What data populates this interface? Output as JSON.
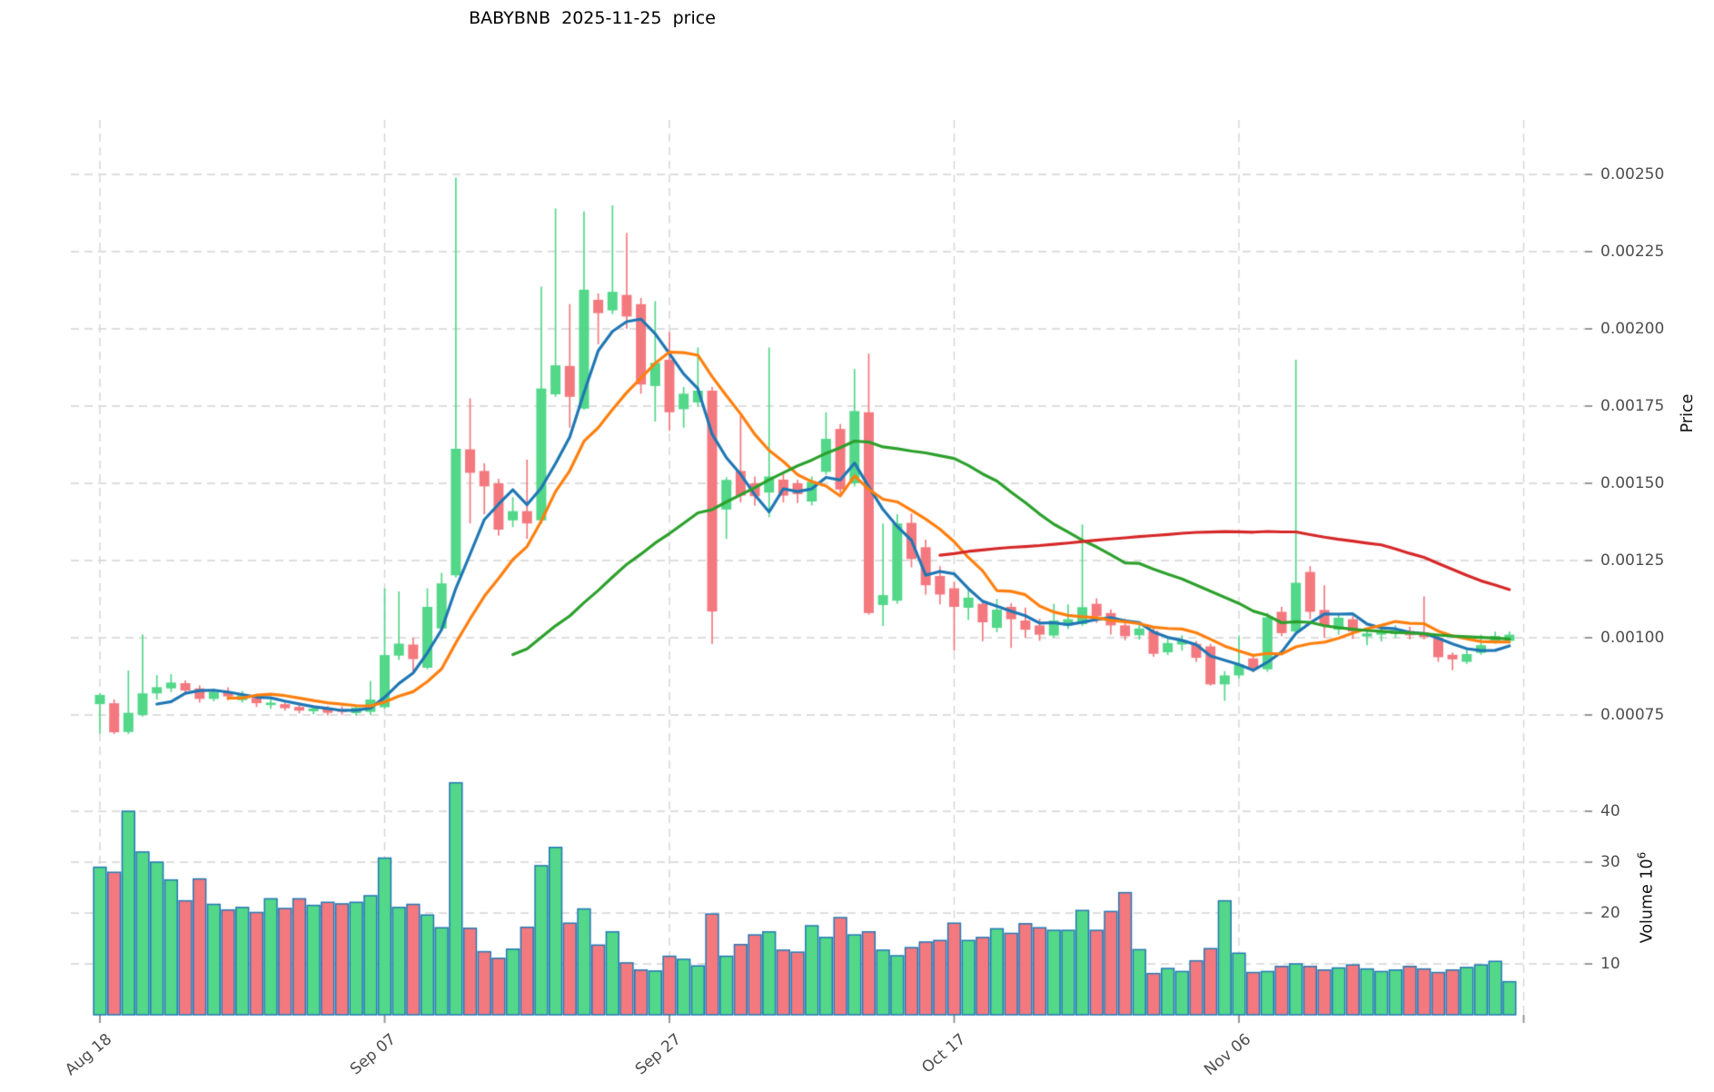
{
  "title": "BABYBNB  2025-11-25  price",
  "axes": {
    "price_label": "Price",
    "volume_label": "Volume 10",
    "volume_label_exp": "6",
    "price_ticks": [
      "0.00250",
      "0.00225",
      "0.00200",
      "0.00175",
      "0.00150",
      "0.00125",
      "0.00100",
      "0.00075"
    ],
    "price_tick_values": [
      0.0025,
      0.00225,
      0.002,
      0.00175,
      0.0015,
      0.00125,
      0.001,
      0.00075
    ],
    "volume_ticks": [
      "40",
      "30",
      "20",
      "10"
    ],
    "volume_tick_values": [
      40,
      30,
      20,
      10
    ],
    "x_ticks": [
      "Aug 18",
      "Sep 07",
      "Sep 27",
      "Oct 17",
      "Nov 06"
    ],
    "x_tick_indices": [
      0,
      20,
      40,
      60,
      80
    ],
    "unlabeled_x_tick_index": 100
  },
  "colors": {
    "up": "#53d789",
    "down": "#f3797f",
    "volume_edge": "#2278b5",
    "ma5": "#1f77b4",
    "ma10": "#ff7f0e",
    "ma30": "#2ca02c",
    "ma60": "#d62728",
    "grid": "#d4d4d4",
    "tick_mark": "#8c8c8c",
    "tick_text": "#4d4d4d",
    "title_text": "#000000"
  },
  "chart_data": {
    "type": "candlestick+volume",
    "symbol": "BABYBNB",
    "as_of_date": "2025-11-25",
    "grid": true,
    "legend_position": "none",
    "ylabel": "Price",
    "ylabel_volume": "Volume 10^6",
    "ylim_price": [
      0.00058,
      0.00268
    ],
    "ylim_volume": [
      0,
      48
    ],
    "volume_unit": "millions",
    "mav_windows": [
      5,
      10,
      30,
      60
    ],
    "candles": [
      [
        "Aug 18",
        0.000785,
        0.00082,
        0.00069,
        0.000815,
        29.0
      ],
      [
        "Aug 19",
        0.000788,
        0.0008,
        0.000688,
        0.000694,
        28.0
      ],
      [
        "Aug 20",
        0.000695,
        0.000894,
        0.000688,
        0.000757,
        40.0
      ],
      [
        "Aug 21",
        0.00075,
        0.00101,
        0.000745,
        0.00082,
        32.0
      ],
      [
        "Aug 22",
        0.00082,
        0.000879,
        0.0008,
        0.00084,
        30.0
      ],
      [
        "Aug 23",
        0.000836,
        0.000882,
        0.000824,
        0.000855,
        26.5
      ],
      [
        "Aug 24",
        0.000853,
        0.000862,
        0.000815,
        0.000829,
        22.4
      ],
      [
        "Aug 25",
        0.000836,
        0.000846,
        0.00079,
        0.000802,
        26.7
      ],
      [
        "Aug 26",
        0.000802,
        0.000836,
        0.000794,
        0.000825,
        21.7
      ],
      [
        "Aug 27",
        0.000824,
        0.00084,
        0.000798,
        0.00081,
        20.6
      ],
      [
        "Aug 28",
        0.000798,
        0.000828,
        0.00079,
        0.000815,
        21.1
      ],
      [
        "Aug 29",
        0.000805,
        0.000818,
        0.000776,
        0.000788,
        20.1
      ],
      [
        "Aug 30",
        0.000782,
        0.0008,
        0.00077,
        0.00079,
        22.8
      ],
      [
        "Aug 31",
        0.000785,
        0.000795,
        0.000764,
        0.000772,
        20.9
      ],
      [
        "Sep 01",
        0.000776,
        0.000786,
        0.000755,
        0.000764,
        22.8
      ],
      [
        "Sep 02",
        0.000762,
        0.00078,
        0.000752,
        0.000771,
        21.5
      ],
      [
        "Sep 03",
        0.000769,
        0.000778,
        0.000748,
        0.000757,
        22.1
      ],
      [
        "Sep 04",
        0.000768,
        0.000778,
        0.00075,
        0.00076,
        21.8
      ],
      [
        "Sep 05",
        0.000756,
        0.000782,
        0.000748,
        0.000774,
        22.1
      ],
      [
        "Sep 06",
        0.00076,
        0.00086,
        0.00075,
        0.0008,
        23.4
      ],
      [
        "Sep 07",
        0.000775,
        0.00116,
        0.00077,
        0.000944,
        30.8
      ],
      [
        "Sep 08",
        0.000942,
        0.00115,
        0.000928,
        0.000981,
        21.1
      ],
      [
        "Sep 09",
        0.000978,
        0.001,
        0.000883,
        0.000931,
        21.7
      ],
      [
        "Sep 10",
        0.000903,
        0.00116,
        0.000898,
        0.0011,
        19.6
      ],
      [
        "Sep 11",
        0.00103,
        0.00121,
        0.00102,
        0.001176,
        17.1
      ],
      [
        "Sep 12",
        0.001202,
        0.00249,
        0.001195,
        0.001612,
        45.6
      ],
      [
        "Sep 13",
        0.00161,
        0.001775,
        0.00137,
        0.001534,
        17.0
      ],
      [
        "Sep 14",
        0.00154,
        0.001565,
        0.0014,
        0.00149,
        12.4
      ],
      [
        "Sep 15",
        0.0015,
        0.001515,
        0.00133,
        0.00135,
        11.1
      ],
      [
        "Sep 16",
        0.00138,
        0.001455,
        0.001358,
        0.00141,
        12.9
      ],
      [
        "Sep 17",
        0.00141,
        0.001577,
        0.00132,
        0.00137,
        17.2
      ],
      [
        "Sep 18",
        0.00138,
        0.002137,
        0.001368,
        0.001807,
        29.3
      ],
      [
        "Sep 19",
        0.001788,
        0.00239,
        0.00178,
        0.001882,
        32.9
      ],
      [
        "Sep 20",
        0.00188,
        0.00208,
        0.00168,
        0.00178,
        18.0
      ],
      [
        "Sep 21",
        0.001742,
        0.00238,
        0.001738,
        0.002127,
        20.8
      ],
      [
        "Sep 22",
        0.002094,
        0.002115,
        0.00195,
        0.002051,
        13.7
      ],
      [
        "Sep 23",
        0.00206,
        0.0024,
        0.002048,
        0.00212,
        16.3
      ],
      [
        "Sep 24",
        0.00211,
        0.00231,
        0.002,
        0.00204,
        10.2
      ],
      [
        "Sep 25",
        0.00208,
        0.0021,
        0.00179,
        0.00182,
        8.8
      ],
      [
        "Sep 26",
        0.001815,
        0.00209,
        0.0017,
        0.00189,
        8.6
      ],
      [
        "Sep 27",
        0.0019,
        0.00199,
        0.00167,
        0.00173,
        11.5
      ],
      [
        "Sep 28",
        0.00174,
        0.001812,
        0.00168,
        0.00179,
        10.9
      ],
      [
        "Sep 29",
        0.001762,
        0.00194,
        0.001748,
        0.0018,
        9.6
      ],
      [
        "Sep 30",
        0.0018,
        0.001812,
        0.00098,
        0.001085,
        19.8
      ],
      [
        "Oct 01",
        0.001415,
        0.00152,
        0.00132,
        0.001511,
        11.5
      ],
      [
        "Oct 02",
        0.00154,
        0.00172,
        0.001438,
        0.00146,
        13.8
      ],
      [
        "Oct 03",
        0.0015,
        0.001522,
        0.001428,
        0.001458,
        15.7
      ],
      [
        "Oct 04",
        0.00147,
        0.00194,
        0.00139,
        0.001522,
        16.3
      ],
      [
        "Oct 05",
        0.001512,
        0.00153,
        0.001438,
        0.00146,
        12.7
      ],
      [
        "Oct 06",
        0.0015,
        0.001512,
        0.001436,
        0.001465,
        12.3
      ],
      [
        "Oct 07",
        0.001441,
        0.001522,
        0.001428,
        0.001505,
        17.5
      ],
      [
        "Oct 08",
        0.001537,
        0.00173,
        0.001528,
        0.001644,
        15.2
      ],
      [
        "Oct 09",
        0.001676,
        0.001692,
        0.001468,
        0.00148,
        19.1
      ],
      [
        "Oct 10",
        0.0015,
        0.00187,
        0.00149,
        0.001734,
        15.7
      ],
      [
        "Oct 11",
        0.00173,
        0.00192,
        0.001075,
        0.00108,
        16.3
      ],
      [
        "Oct 12",
        0.001106,
        0.00137,
        0.001038,
        0.001138,
        12.7
      ],
      [
        "Oct 13",
        0.00112,
        0.0014,
        0.00111,
        0.00137,
        11.6
      ],
      [
        "Oct 14",
        0.001372,
        0.001402,
        0.001228,
        0.001255,
        13.2
      ],
      [
        "Oct 15",
        0.001293,
        0.001318,
        0.00114,
        0.00117,
        14.3
      ],
      [
        "Oct 16",
        0.0012,
        0.001232,
        0.001108,
        0.00114,
        14.6
      ],
      [
        "Oct 17",
        0.00116,
        0.001182,
        0.000958,
        0.0011,
        18.0
      ],
      [
        "Oct 18",
        0.001097,
        0.001162,
        0.001058,
        0.00113,
        14.6
      ],
      [
        "Oct 19",
        0.00111,
        0.001122,
        0.000989,
        0.00105,
        15.2
      ],
      [
        "Oct 20",
        0.001032,
        0.001126,
        0.001018,
        0.001091,
        16.9
      ],
      [
        "Oct 21",
        0.0011,
        0.001112,
        0.000967,
        0.00106,
        16.0
      ],
      [
        "Oct 22",
        0.001056,
        0.001098,
        0.001,
        0.001026,
        17.9
      ],
      [
        "Oct 23",
        0.00104,
        0.001062,
        0.00099,
        0.00101,
        17.1
      ],
      [
        "Oct 24",
        0.001007,
        0.00111,
        0.001,
        0.001056,
        16.6
      ],
      [
        "Oct 25",
        0.00104,
        0.001108,
        0.001028,
        0.00106,
        16.6
      ],
      [
        "Oct 26",
        0.001044,
        0.001367,
        0.001038,
        0.001099,
        20.5
      ],
      [
        "Oct 27",
        0.00111,
        0.001128,
        0.001048,
        0.00107,
        16.6
      ],
      [
        "Oct 28",
        0.00108,
        0.001092,
        0.00101,
        0.00104,
        20.3
      ],
      [
        "Oct 29",
        0.00104,
        0.001062,
        0.000992,
        0.001005,
        24.0
      ],
      [
        "Oct 30",
        0.001008,
        0.001052,
        0.000994,
        0.00103,
        12.8
      ],
      [
        "Oct 31",
        0.001022,
        0.001032,
        0.000938,
        0.000948,
        8.1
      ],
      [
        "Nov 01",
        0.000953,
        0.001,
        0.000944,
        0.000983,
        9.1
      ],
      [
        "Nov 02",
        0.000978,
        0.001008,
        0.000958,
        0.000992,
        8.5
      ],
      [
        "Nov 03",
        0.00098,
        0.00099,
        0.000922,
        0.000935,
        10.6
      ],
      [
        "Nov 04",
        0.000972,
        0.00098,
        0.000845,
        0.000849,
        13.0
      ],
      [
        "Nov 05",
        0.000849,
        0.000892,
        0.000796,
        0.000878,
        22.4
      ],
      [
        "Nov 06",
        0.000878,
        0.001007,
        0.000868,
        0.000913,
        12.1
      ],
      [
        "Nov 07",
        0.000933,
        0.000942,
        0.000888,
        0.000898,
        8.3
      ],
      [
        "Nov 08",
        0.000898,
        0.00108,
        0.00089,
        0.001066,
        8.5
      ],
      [
        "Nov 09",
        0.001084,
        0.0011,
        0.001005,
        0.001015,
        9.5
      ],
      [
        "Nov 10",
        0.00102,
        0.0019,
        0.00101,
        0.001178,
        10.0
      ],
      [
        "Nov 11",
        0.001213,
        0.001232,
        0.00106,
        0.001084,
        9.5
      ],
      [
        "Nov 12",
        0.00109,
        0.00117,
        0.001,
        0.00104,
        8.8
      ],
      [
        "Nov 13",
        0.001026,
        0.00108,
        0.00101,
        0.001065,
        9.2
      ],
      [
        "Nov 14",
        0.00106,
        0.001072,
        0.000996,
        0.00102,
        9.8
      ],
      [
        "Nov 15",
        0.001004,
        0.00103,
        0.000976,
        0.001014,
        9.0
      ],
      [
        "Nov 16",
        0.00101,
        0.001032,
        0.000988,
        0.00102,
        8.5
      ],
      [
        "Nov 17",
        0.001012,
        0.00104,
        0.001,
        0.001025,
        8.8
      ],
      [
        "Nov 18",
        0.001022,
        0.001036,
        0.000995,
        0.001008,
        9.5
      ],
      [
        "Nov 19",
        0.001018,
        0.001134,
        0.000995,
        0.001002,
        9.0
      ],
      [
        "Nov 20",
        0.001,
        0.001012,
        0.000922,
        0.000937,
        8.3
      ],
      [
        "Nov 21",
        0.000945,
        0.000952,
        0.000895,
        0.00093,
        8.8
      ],
      [
        "Nov 22",
        0.000922,
        0.000962,
        0.000915,
        0.000947,
        9.3
      ],
      [
        "Nov 23",
        0.000951,
        0.00101,
        0.000945,
        0.000976,
        9.8
      ],
      [
        "Nov 24",
        0.000986,
        0.00102,
        0.00098,
        0.001006,
        10.5
      ],
      [
        "Nov 25",
        0.00099,
        0.00102,
        0.000985,
        0.00101,
        6.5
      ]
    ]
  }
}
